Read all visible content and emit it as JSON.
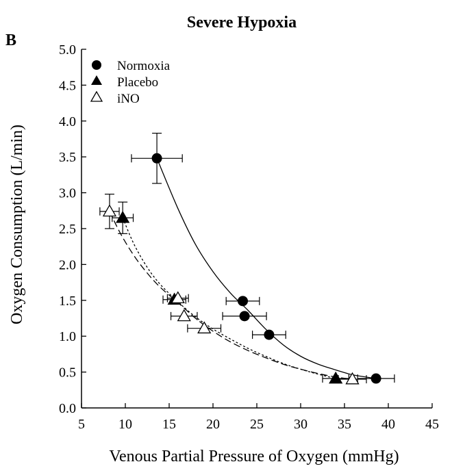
{
  "panel_label": "B",
  "chart_data": {
    "type": "scatter",
    "title": "Severe Hypoxia",
    "xlabel": "Venous Partial Pressure of Oxygen (mmHg)",
    "ylabel": "Oxygen Consumption (L/min)",
    "xlim": [
      5,
      45
    ],
    "ylim": [
      0.0,
      5.0
    ],
    "x_ticks": [
      5,
      10,
      15,
      20,
      25,
      30,
      35,
      40,
      45
    ],
    "y_ticks": [
      "0.0",
      "0.5",
      "1.0",
      "1.5",
      "2.0",
      "2.5",
      "3.0",
      "3.5",
      "4.0",
      "4.5",
      "5.0"
    ],
    "grid": false,
    "legend_position": "top-left",
    "series": [
      {
        "name": "Normoxia",
        "marker": "filled-circle",
        "line_style": "solid",
        "points": [
          {
            "x": 13.6,
            "y": 3.48,
            "xerr": 2.9,
            "yerr": 0.35
          },
          {
            "x": 23.4,
            "y": 1.49,
            "xerr": 1.9,
            "yerr": 0.0
          },
          {
            "x": 23.6,
            "y": 1.28,
            "xerr": 2.5,
            "yerr": 0.0
          },
          {
            "x": 26.4,
            "y": 1.02,
            "xerr": 1.9,
            "yerr": 0.0
          },
          {
            "x": 38.6,
            "y": 0.41,
            "xerr": 2.1,
            "yerr": 0.0
          }
        ],
        "fit_curve": [
          [
            13.6,
            3.48
          ],
          [
            16,
            2.78
          ],
          [
            18,
            2.28
          ],
          [
            20,
            1.9
          ],
          [
            22,
            1.6
          ],
          [
            24,
            1.36
          ],
          [
            26,
            1.1
          ],
          [
            28,
            0.88
          ],
          [
            30,
            0.72
          ],
          [
            32,
            0.61
          ],
          [
            34,
            0.53
          ],
          [
            36,
            0.46
          ],
          [
            38.6,
            0.41
          ]
        ]
      },
      {
        "name": "Placebo",
        "marker": "filled-triangle",
        "line_style": "short-dash",
        "points": [
          {
            "x": 9.7,
            "y": 2.65,
            "xerr": 1.2,
            "yerr": 0.22
          },
          {
            "x": 15.6,
            "y": 1.51,
            "xerr": 1.3,
            "yerr": 0.0
          },
          {
            "x": 34.0,
            "y": 0.41,
            "xerr": 1.5,
            "yerr": 0.0
          }
        ],
        "fit_curve": [
          [
            9.7,
            2.65
          ],
          [
            11,
            2.28
          ],
          [
            12.5,
            1.96
          ],
          [
            14,
            1.72
          ],
          [
            16,
            1.48
          ],
          [
            18,
            1.27
          ],
          [
            20,
            1.1
          ],
          [
            22,
            0.96
          ],
          [
            24,
            0.83
          ],
          [
            26,
            0.72
          ],
          [
            28,
            0.62
          ],
          [
            30,
            0.54
          ],
          [
            32,
            0.47
          ],
          [
            34,
            0.41
          ]
        ]
      },
      {
        "name": "iNO",
        "marker": "open-triangle",
        "line_style": "long-dash",
        "points": [
          {
            "x": 8.2,
            "y": 2.74,
            "xerr": 1.1,
            "yerr": 0.24
          },
          {
            "x": 16.0,
            "y": 1.53,
            "xerr": 1.2,
            "yerr": 0.0
          },
          {
            "x": 16.7,
            "y": 1.28,
            "xerr": 1.5,
            "yerr": 0.0
          },
          {
            "x": 19.0,
            "y": 1.11,
            "xerr": 1.9,
            "yerr": 0.0
          },
          {
            "x": 35.9,
            "y": 0.4,
            "xerr": 1.6,
            "yerr": 0.0
          }
        ],
        "fit_curve": [
          [
            8.2,
            2.74
          ],
          [
            9.5,
            2.42
          ],
          [
            11,
            2.12
          ],
          [
            12.5,
            1.88
          ],
          [
            14,
            1.68
          ],
          [
            16,
            1.47
          ],
          [
            18,
            1.25
          ],
          [
            20,
            1.07
          ],
          [
            22,
            0.92
          ],
          [
            24,
            0.8
          ],
          [
            26,
            0.7
          ],
          [
            28,
            0.61
          ],
          [
            30,
            0.54
          ],
          [
            32,
            0.48
          ],
          [
            34,
            0.43
          ],
          [
            35.9,
            0.4
          ]
        ]
      }
    ]
  }
}
